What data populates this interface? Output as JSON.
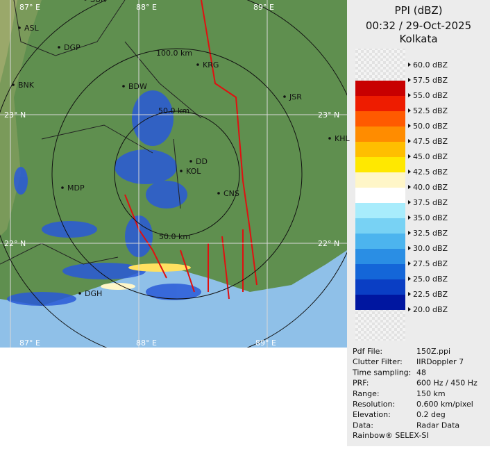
{
  "header": {
    "title": "PPI (dBZ)",
    "time": "00:32 / 29-Oct-2025",
    "station": "Kolkata"
  },
  "legend": {
    "labels": [
      "60.0 dBZ",
      "57.5 dBZ",
      "55.0 dBZ",
      "52.5 dBZ",
      "50.0 dBZ",
      "47.5 dBZ",
      "45.0 dBZ",
      "42.5 dBZ",
      "40.0 dBZ",
      "37.5 dBZ",
      "35.0 dBZ",
      "32.5 dBZ",
      "30.0 dBZ",
      "27.5 dBZ",
      "25.0 dBZ",
      "22.5 dBZ",
      "20.0 dBZ"
    ],
    "colors": [
      "#a00000",
      "#c80000",
      "#ee1c00",
      "#ff5a00",
      "#ff8c00",
      "#ffbe00",
      "#ffe800",
      "#fff6c8",
      "#ffffff",
      "#a8ecfc",
      "#78d2f4",
      "#4cb4ee",
      "#2a8ee4",
      "#1466d8",
      "#0a3ec4",
      "#0016a0"
    ]
  },
  "map": {
    "places": [
      "SUR",
      "ASL",
      "DGP",
      "KRG",
      "BDW",
      "JSR",
      "BNK",
      "KHL",
      "DD",
      "KOL",
      "MDP",
      "CNS",
      "DGH"
    ],
    "lon_labels": [
      "87° E",
      "88° E",
      "89° E",
      "87° E",
      "88° E",
      "89° E"
    ],
    "lat_labels": [
      "23° N",
      "23° N",
      "22° N",
      "22° N"
    ],
    "ranges": [
      "100.0 km",
      "50.0 km",
      "50.0 km"
    ]
  },
  "info": [
    {
      "key": "Pdf File:",
      "value": "150Z.ppi"
    },
    {
      "key": "Clutter Filter:",
      "value": "IIRDoppler 7"
    },
    {
      "key": "Time sampling:",
      "value": "48"
    },
    {
      "key": "PRF:",
      "value": "600 Hz / 450 Hz"
    },
    {
      "key": "Range:",
      "value": "150 km"
    },
    {
      "key": "Resolution:",
      "value": "0.600 km/pixel"
    },
    {
      "key": "Elevation:",
      "value": "0.2 deg"
    },
    {
      "key": "Data:",
      "value": "Radar Data"
    }
  ],
  "footer": "Rainbow® SELEX-SI"
}
